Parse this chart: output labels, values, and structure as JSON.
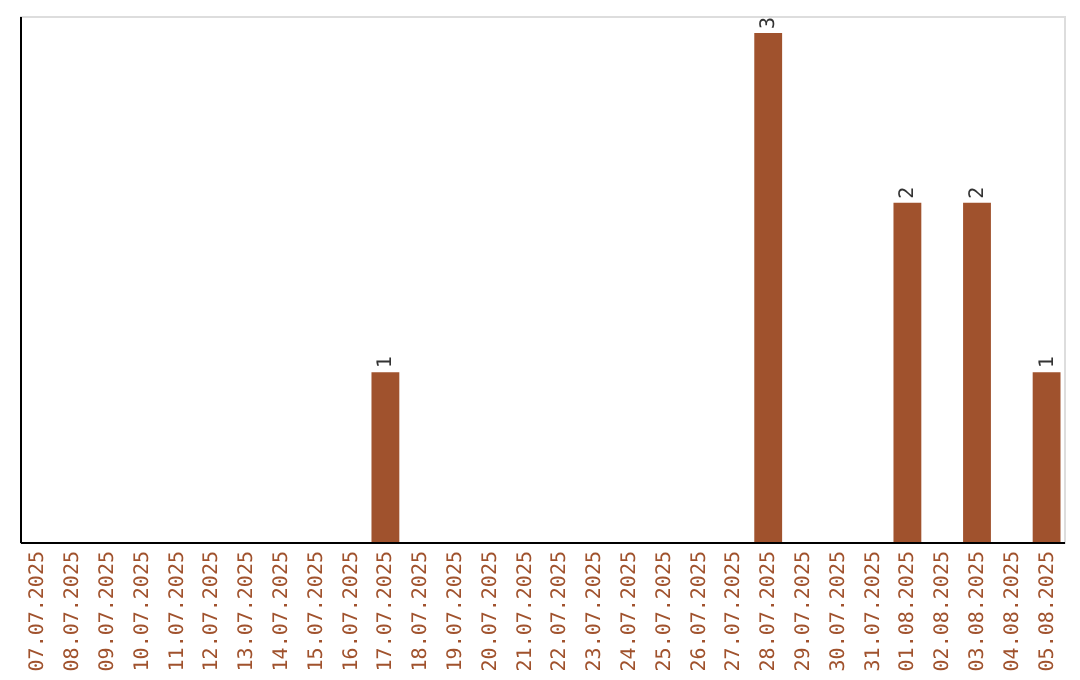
{
  "chart_data": {
    "type": "bar",
    "categories": [
      "07.07.2025",
      "08.07.2025",
      "09.07.2025",
      "10.07.2025",
      "11.07.2025",
      "12.07.2025",
      "13.07.2025",
      "14.07.2025",
      "15.07.2025",
      "16.07.2025",
      "17.07.2025",
      "18.07.2025",
      "19.07.2025",
      "20.07.2025",
      "21.07.2025",
      "22.07.2025",
      "23.07.2025",
      "24.07.2025",
      "25.07.2025",
      "26.07.2025",
      "27.07.2025",
      "28.07.2025",
      "29.07.2025",
      "30.07.2025",
      "31.07.2025",
      "01.08.2025",
      "02.08.2025",
      "03.08.2025",
      "04.08.2025",
      "05.08.2025"
    ],
    "values": [
      0,
      0,
      0,
      0,
      0,
      0,
      0,
      0,
      0,
      0,
      1,
      0,
      0,
      0,
      0,
      0,
      0,
      0,
      0,
      0,
      0,
      3,
      0,
      0,
      0,
      2,
      0,
      2,
      0,
      1
    ],
    "value_labels": [
      null,
      null,
      null,
      null,
      null,
      null,
      null,
      null,
      null,
      null,
      "1",
      null,
      null,
      null,
      null,
      null,
      null,
      null,
      null,
      null,
      null,
      "3",
      null,
      null,
      null,
      "2",
      null,
      "2",
      null,
      "1"
    ],
    "color": "#a0522d",
    "ylim": [
      0,
      3.1
    ],
    "tick_labels": "x",
    "grid": false
  }
}
